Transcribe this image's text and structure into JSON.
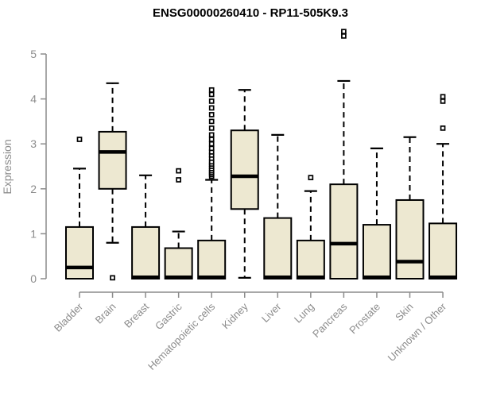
{
  "chart_data": {
    "type": "boxplot",
    "title": "ENSG00000260410 - RP11-505K9.3",
    "ylabel": "Expression",
    "xlabel": "",
    "ylim": [
      0,
      5.6
    ],
    "yticks": [
      0,
      1,
      2,
      3,
      4,
      5
    ],
    "grid": false,
    "legend": "none",
    "categories": [
      "Bladder",
      "Brain",
      "Breast",
      "Gastric",
      "Hematopoietic cells",
      "Kidney",
      "Liver",
      "Lung",
      "Pancreas",
      "Prostate",
      "Skin",
      "Unknown / Other"
    ],
    "series": [
      {
        "category": "Bladder",
        "q1": 0,
        "median": 0.25,
        "q3": 1.15,
        "whisker_low": 0,
        "whisker_high": 2.45,
        "outliers": [
          3.1
        ]
      },
      {
        "category": "Brain",
        "q1": 2.0,
        "median": 2.82,
        "q3": 3.27,
        "whisker_low": 0.8,
        "whisker_high": 4.35,
        "outliers": [
          0.02
        ]
      },
      {
        "category": "Breast",
        "q1": 0,
        "median": 0.03,
        "q3": 1.15,
        "whisker_low": 0,
        "whisker_high": 2.3,
        "outliers": []
      },
      {
        "category": "Gastric",
        "q1": 0,
        "median": 0.03,
        "q3": 0.68,
        "whisker_low": 0,
        "whisker_high": 1.05,
        "outliers": [
          2.2,
          2.4
        ]
      },
      {
        "category": "Hematopoietic cells",
        "q1": 0,
        "median": 0.03,
        "q3": 0.85,
        "whisker_low": 0,
        "whisker_high": 2.2,
        "outliers": [
          2.28,
          2.32,
          2.36,
          2.4,
          2.45,
          2.5,
          2.55,
          2.6,
          2.68,
          2.75,
          2.82,
          2.9,
          3.0,
          3.1,
          3.2,
          3.35,
          3.5,
          3.65,
          3.8,
          3.95,
          4.1,
          4.2
        ]
      },
      {
        "category": "Kidney",
        "q1": 1.55,
        "median": 2.28,
        "q3": 3.3,
        "whisker_low": 0.02,
        "whisker_high": 4.2,
        "outliers": []
      },
      {
        "category": "Liver",
        "q1": 0,
        "median": 0.03,
        "q3": 1.35,
        "whisker_low": 0,
        "whisker_high": 3.2,
        "outliers": []
      },
      {
        "category": "Lung",
        "q1": 0,
        "median": 0.03,
        "q3": 0.85,
        "whisker_low": 0,
        "whisker_high": 1.95,
        "outliers": [
          2.25
        ]
      },
      {
        "category": "Pancreas",
        "q1": 0,
        "median": 0.78,
        "q3": 2.1,
        "whisker_low": 0,
        "whisker_high": 4.4,
        "outliers": [
          5.4,
          5.5
        ]
      },
      {
        "category": "Prostate",
        "q1": 0,
        "median": 0.03,
        "q3": 1.2,
        "whisker_low": 0,
        "whisker_high": 2.9,
        "outliers": []
      },
      {
        "category": "Skin",
        "q1": 0,
        "median": 0.38,
        "q3": 1.75,
        "whisker_low": 0,
        "whisker_high": 3.15,
        "outliers": []
      },
      {
        "category": "Unknown / Other",
        "q1": 0,
        "median": 0.03,
        "q3": 1.23,
        "whisker_low": 0,
        "whisker_high": 3.0,
        "outliers": [
          3.35,
          3.95,
          4.05
        ]
      }
    ],
    "colors": {
      "box_fill": "#EDE8D1",
      "box_border": "#000000",
      "median": "#000000",
      "whisker": "#000000",
      "outlier": "#000000",
      "axis": "#8C8C8C",
      "tick_text": "#8C8C8C",
      "title_text": "#000000",
      "background": "#FFFFFF"
    }
  }
}
